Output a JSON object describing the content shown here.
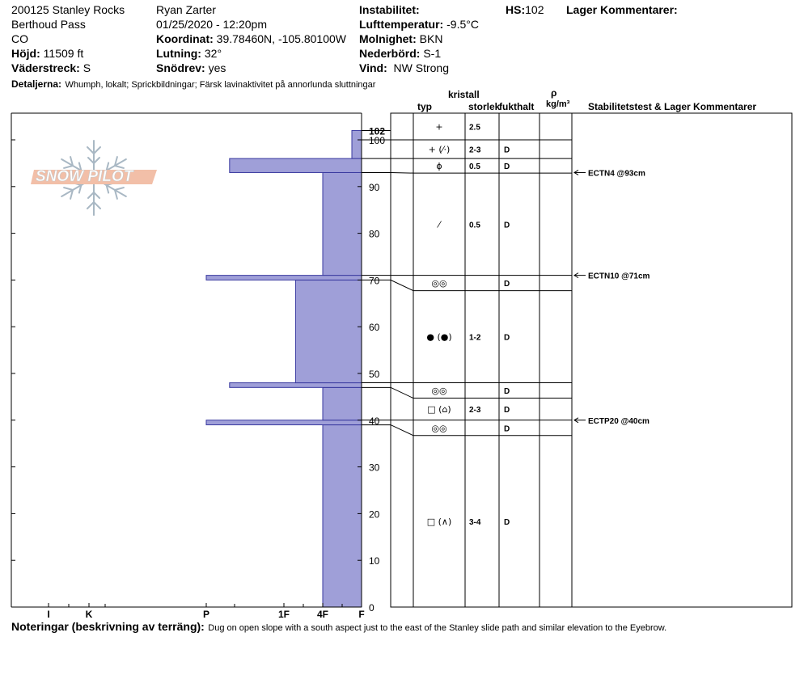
{
  "header": {
    "site": "200125 Stanley Rocks",
    "location": "Berthoud Pass",
    "state": "CO",
    "hojd_label": "Höjd:",
    "hojd_value": "11509 ft",
    "vaderstreck_label": "Väderstreck:",
    "vaderstreck_value": "S",
    "observer": "Ryan Zarter",
    "datetime": "01/25/2020 - 12:20pm",
    "koordinat_label": "Koordinat:",
    "koordinat_value": "39.78460N, -105.80100W",
    "lutning_label": "Lutning:",
    "lutning_value": "32°",
    "snodrev_label": "Snödrev:",
    "snodrev_value": "yes",
    "instabilitet_label": "Instabilitet:",
    "lufttemp_label": "Lufttemperatur:",
    "lufttemp_value": "-9.5°C",
    "molnighet_label": "Molnighet:",
    "molnighet_value": "BKN",
    "nederbord_label": "Nederbörd:",
    "nederbord_value": "S-1",
    "vind_label": "Vind:",
    "vind_value": "NW Strong",
    "hs_label": "HS:",
    "hs_value": "102",
    "lager_kommentarer": "Lager Kommentarer:",
    "detaljerna_label": "Detaljerna:",
    "detaljerna_value": "Whumph, lokalt;  Sprickbildningar;  Färsk lavinaktivitet på annorlunda sluttningar"
  },
  "logo_text": "SNOW PILOT",
  "columns": {
    "kristall": "kristall",
    "typ": "typ",
    "storlek": "storlek",
    "fukthalt": "fukthalt",
    "rho": "ρ",
    "density_unit": "kg/m³",
    "stability": "Stabilitetstest & Lager Kommentarer"
  },
  "chart_data": {
    "type": "snow-profile",
    "hs": 102,
    "ylim": [
      0,
      100
    ],
    "height_ticks": [
      0,
      10,
      20,
      30,
      40,
      50,
      60,
      70,
      80,
      90,
      100
    ],
    "hardness_scale": [
      "F",
      "4F",
      "1F",
      "P",
      "K",
      "I"
    ],
    "hardness_tick_labels": [
      {
        "label": "I",
        "h": 5
      },
      {
        "label": "K",
        "h": 4
      },
      {
        "label": "P",
        "h": 3
      },
      {
        "label": "1F",
        "h": 2
      },
      {
        "label": "4F",
        "h": 1
      },
      {
        "label": "F",
        "h": 0
      }
    ],
    "hardness_layers": [
      {
        "bottom": 0,
        "top": 39,
        "hardness": 1
      },
      {
        "bottom": 39,
        "top": 40,
        "hardness": 3
      },
      {
        "bottom": 40,
        "top": 47,
        "hardness": 1
      },
      {
        "bottom": 47,
        "top": 48,
        "hardness": 2.7
      },
      {
        "bottom": 48,
        "top": 70,
        "hardness": 1.7
      },
      {
        "bottom": 70,
        "top": 71,
        "hardness": 3
      },
      {
        "bottom": 71,
        "top": 93,
        "hardness": 1
      },
      {
        "bottom": 93,
        "top": 96,
        "hardness": 2.7
      },
      {
        "bottom": 96,
        "top": 102,
        "hardness": 0.25
      }
    ],
    "layers": [
      {
        "top": 102,
        "bottom": 100,
        "typ": "+",
        "storlek": "2.5",
        "fukthalt": ""
      },
      {
        "top": 100,
        "bottom": 96,
        "typ": "+ (⁄·)",
        "storlek": "2-3",
        "fukthalt": "D"
      },
      {
        "top": 96,
        "bottom": 93,
        "typ": "ϕ",
        "storlek": "0.5",
        "fukthalt": "D"
      },
      {
        "top": 93,
        "bottom": 71,
        "typ": "⁄",
        "storlek": "0.5",
        "fukthalt": "D"
      },
      {
        "top": 71,
        "bottom": 70,
        "typ": "◎◎",
        "storlek": "",
        "fukthalt": "D"
      },
      {
        "top": 70,
        "bottom": 48,
        "typ": "● (●)",
        "storlek": "1-2",
        "fukthalt": "D"
      },
      {
        "top": 48,
        "bottom": 47,
        "typ": "◎◎",
        "storlek": "",
        "fukthalt": "D"
      },
      {
        "top": 47,
        "bottom": 40,
        "typ": "□ (⌂)",
        "storlek": "2-3",
        "fukthalt": "D"
      },
      {
        "top": 40,
        "bottom": 39,
        "typ": "◎◎",
        "storlek": "",
        "fukthalt": "D"
      },
      {
        "top": 39,
        "bottom": 0,
        "typ": "□ (∧)",
        "storlek": "3-4",
        "fukthalt": "D"
      }
    ],
    "stability_tests": [
      {
        "label": "ECTN4 @93cm",
        "height": 93
      },
      {
        "label": "ECTN10 @71cm",
        "height": 71
      },
      {
        "label": "ECTP20 @40cm",
        "height": 40
      }
    ]
  },
  "notes": {
    "label": "Noteringar (beskrivning av terräng):",
    "value": "Dug on open slope with a south aspect just to the east of the Stanley slide path and similar elevation to the Eyebrow."
  }
}
